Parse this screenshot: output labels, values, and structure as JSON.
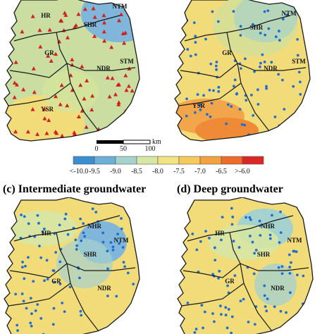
{
  "panels": [
    {
      "id": "a",
      "title": "",
      "marker": "triangle",
      "regions": [
        "HR",
        "SHR",
        "NTM",
        "GR",
        "NDR",
        "STM",
        "YSR"
      ]
    },
    {
      "id": "b",
      "title": "",
      "marker": "dot",
      "regions": [
        "SHR",
        "NTM",
        "GR",
        "NDR",
        "STM",
        "YSR"
      ]
    },
    {
      "id": "c",
      "title": "(c) Intermediate groundwater",
      "marker": "dot",
      "regions": [
        "NHR",
        "HR",
        "NTM",
        "SHR",
        "GR",
        "NDR"
      ]
    },
    {
      "id": "d",
      "title": "(d) Deep groundwater",
      "marker": "dot",
      "regions": [
        "NHR",
        "HR",
        "NTM",
        "SHR",
        "GR",
        "NDR"
      ]
    }
  ],
  "scalebar": {
    "ticks": [
      "0",
      "50",
      "100"
    ],
    "unit": "km"
  },
  "legend": {
    "labels": [
      "<-10.0",
      "-9.5",
      "-9.0",
      "-8.5",
      "-8.0",
      "-7.5",
      "-7.0",
      "-6.5",
      ">-6.0"
    ],
    "colors": [
      "#3b8fd0",
      "#6cb0d8",
      "#a6d2cd",
      "#d6e6a4",
      "#f1e583",
      "#f6c95a",
      "#f3a23f",
      "#ec6a2a",
      "#dc2626"
    ]
  },
  "colors": {
    "blue_high": "#7fb6d9",
    "green": "#c9dea0",
    "yellow": "#f2dc7a",
    "orange": "#f3a54a",
    "station_dot": "#1f6fd1",
    "station_triangle": "#d31f1f",
    "outline": "#1a1a1a"
  }
}
